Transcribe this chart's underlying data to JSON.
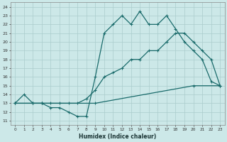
{
  "xlabel": "Humidex (Indice chaleur)",
  "bg_color": "#cce8e8",
  "grid_color": "#aacccc",
  "line_color": "#1a6b6b",
  "xlim": [
    -0.5,
    23.5
  ],
  "ylim": [
    10.5,
    24.5
  ],
  "xticks": [
    0,
    1,
    2,
    3,
    4,
    5,
    6,
    7,
    8,
    9,
    10,
    11,
    12,
    13,
    14,
    15,
    16,
    17,
    18,
    19,
    20,
    21,
    22,
    23
  ],
  "yticks": [
    11,
    12,
    13,
    14,
    15,
    16,
    17,
    18,
    19,
    20,
    21,
    22,
    23,
    24
  ],
  "line1_x": [
    0,
    1,
    2,
    3,
    4,
    5,
    6,
    7,
    8,
    9,
    10,
    11,
    12,
    13,
    14,
    15,
    16,
    17,
    18,
    19,
    20,
    21,
    22,
    23
  ],
  "line1_y": [
    13,
    14,
    13,
    13,
    12.5,
    12.5,
    12,
    11.5,
    11.5,
    16,
    21,
    22,
    23,
    22,
    23.5,
    22,
    22,
    23,
    21.5,
    20,
    19,
    18,
    15.5,
    15
  ],
  "line2_x": [
    0,
    2,
    3,
    9,
    20,
    23
  ],
  "line2_y": [
    13,
    13,
    13,
    13,
    15,
    15
  ],
  "line3_x": [
    0,
    2,
    3,
    4,
    5,
    6,
    7,
    8,
    9,
    10,
    11,
    12,
    13,
    14,
    15,
    16,
    17,
    18,
    19,
    20,
    21,
    22,
    23
  ],
  "line3_y": [
    13,
    13,
    13,
    13,
    13,
    13,
    13,
    13.5,
    14.5,
    16,
    16.5,
    17,
    18,
    18,
    19,
    19,
    20,
    21,
    21,
    20,
    19,
    18,
    15
  ]
}
